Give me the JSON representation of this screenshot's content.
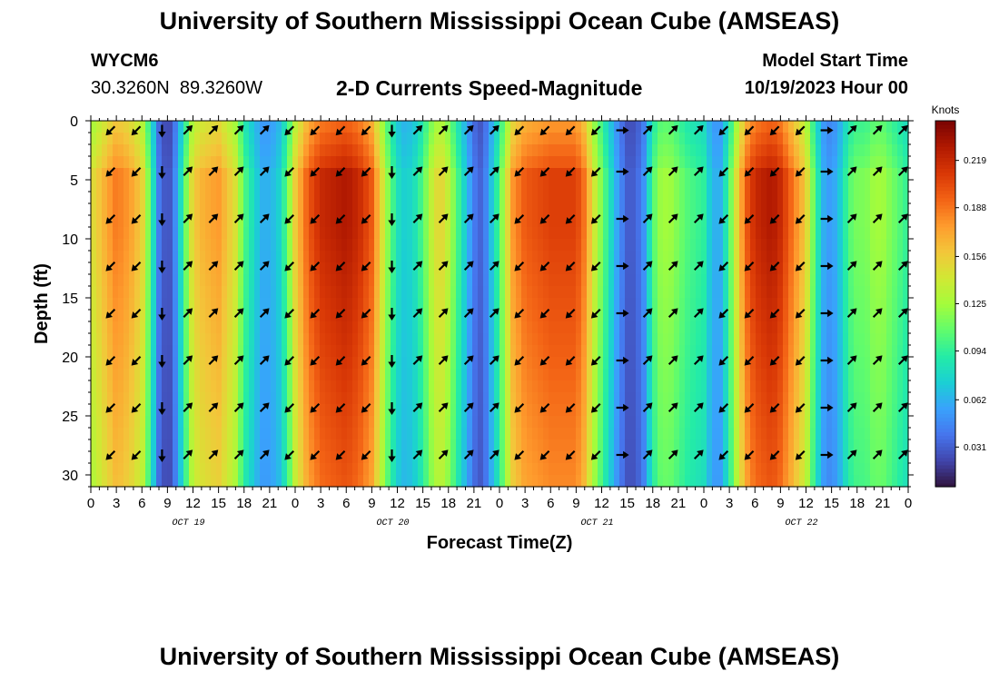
{
  "header": {
    "title": "University of Southern Mississippi Ocean Cube (AMSEAS)",
    "station_id": "WYCM6",
    "station_coords": "30.3260N  89.3260W",
    "subtitle": "2-D Currents Speed-Magnitude",
    "model_start_label": "Model Start Time",
    "model_start_value": "10/19/2023 Hour 00"
  },
  "footer": {
    "title": "University of Southern Mississippi Ocean Cube (AMSEAS)"
  },
  "chart_data": {
    "type": "heatmap",
    "xlabel": "Forecast Time(Z)",
    "ylabel": "Depth (ft)",
    "x_range_hours": [
      0,
      96
    ],
    "y_range_ft": [
      0,
      31
    ],
    "y_ticks": [
      0,
      5,
      10,
      15,
      20,
      25,
      30
    ],
    "x_tick_labels": [
      "0",
      "3",
      "6",
      "9",
      "12",
      "15",
      "18",
      "21",
      "0",
      "3",
      "6",
      "9",
      "12",
      "15",
      "18",
      "21",
      "0",
      "3",
      "6",
      "9",
      "12",
      "15",
      "18",
      "21",
      "0",
      "3",
      "6",
      "9",
      "12",
      "15",
      "18",
      "21",
      "0"
    ],
    "date_labels": [
      {
        "hour": 12,
        "label": "OCT 19"
      },
      {
        "hour": 36,
        "label": "OCT 20"
      },
      {
        "hour": 60,
        "label": "OCT 21"
      },
      {
        "hour": 84,
        "label": "OCT 22"
      }
    ],
    "colorbar": {
      "unit": "Knots",
      "ticks": [
        0.031,
        0.062,
        0.094,
        0.125,
        0.156,
        0.188,
        0.219
      ],
      "range": [
        0.005,
        0.245
      ],
      "colors": [
        "#30123b",
        "#4145ab",
        "#4675ed",
        "#39a2fc",
        "#1bcfd4",
        "#24eca6",
        "#61fc6c",
        "#a4fc3b",
        "#d1e834",
        "#f3c63a",
        "#fe9b2d",
        "#f36315",
        "#d93806",
        "#b11901",
        "#7a0402"
      ]
    },
    "speed_profile_time_hours": [
      0,
      1.5,
      3,
      4.5,
      6,
      7,
      8,
      8.5,
      9,
      9.5,
      10,
      11,
      12,
      13,
      15,
      17,
      18,
      19,
      20,
      21,
      22,
      23,
      24,
      25.5,
      27,
      30,
      31.5,
      33,
      34,
      35,
      36,
      37,
      38,
      39,
      40,
      41,
      42,
      43,
      44,
      45,
      46,
      48,
      49.5,
      51,
      54,
      57,
      58,
      59,
      60,
      61,
      62,
      63,
      64,
      65,
      66,
      67,
      68,
      69,
      70,
      72,
      73,
      74,
      75,
      76,
      77,
      78,
      80,
      81,
      82,
      84,
      85,
      86,
      87,
      88,
      89,
      90,
      91,
      92,
      93,
      94,
      95,
      96
    ],
    "speed_profile_knots": [
      0.14,
      0.16,
      0.18,
      0.17,
      0.15,
      0.1,
      0.04,
      0.03,
      0.025,
      0.03,
      0.05,
      0.1,
      0.15,
      0.16,
      0.17,
      0.14,
      0.1,
      0.08,
      0.06,
      0.06,
      0.07,
      0.1,
      0.15,
      0.19,
      0.21,
      0.22,
      0.21,
      0.19,
      0.15,
      0.11,
      0.08,
      0.07,
      0.08,
      0.1,
      0.13,
      0.15,
      0.13,
      0.1,
      0.07,
      0.04,
      0.03,
      0.1,
      0.17,
      0.19,
      0.2,
      0.2,
      0.18,
      0.14,
      0.11,
      0.08,
      0.05,
      0.03,
      0.03,
      0.05,
      0.1,
      0.12,
      0.12,
      0.11,
      0.1,
      0.09,
      0.06,
      0.06,
      0.1,
      0.15,
      0.19,
      0.21,
      0.22,
      0.21,
      0.19,
      0.15,
      0.1,
      0.06,
      0.05,
      0.07,
      0.1,
      0.11,
      0.11,
      0.12,
      0.12,
      0.11,
      0.1,
      0.09
    ],
    "arrow_depths_ft": [
      0.5,
      4,
      8,
      12,
      16,
      20,
      24,
      28
    ],
    "arrow_times_hours": [
      3,
      6,
      9,
      12,
      15,
      18,
      21,
      24,
      27,
      30,
      33,
      36,
      39,
      42,
      45,
      48,
      51,
      54,
      57,
      60,
      63,
      66,
      69,
      72,
      75,
      78,
      81,
      84,
      87,
      90,
      93,
      96
    ],
    "arrow_direction_by_time_deg": [
      225,
      225,
      180,
      45,
      45,
      45,
      45,
      225,
      225,
      225,
      225,
      180,
      45,
      45,
      45,
      45,
      225,
      225,
      225,
      225,
      90,
      45,
      45,
      45,
      225,
      225,
      225,
      225,
      90,
      45,
      45,
      45
    ]
  }
}
